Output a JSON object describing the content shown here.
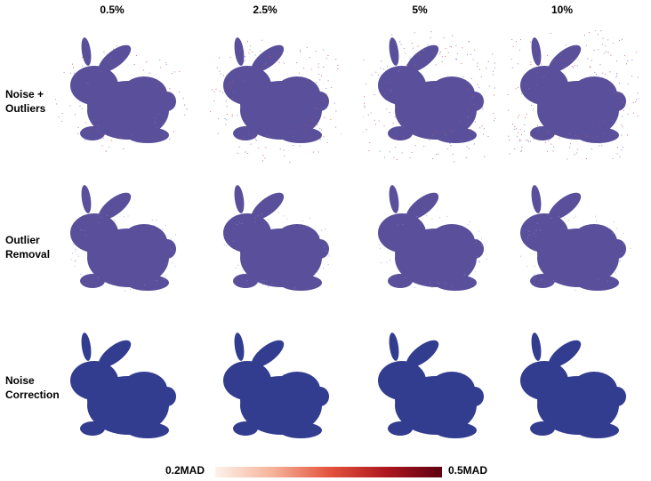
{
  "columns": [
    {
      "label": "0.5%",
      "spread": 0.2
    },
    {
      "label": "2.5%",
      "spread": 0.45
    },
    {
      "label": "5%",
      "spread": 0.7
    },
    {
      "label": "10%",
      "spread": 1.0
    }
  ],
  "rows": [
    {
      "line1": "Noise +",
      "line2": "Outliers",
      "mode": "noisy"
    },
    {
      "line1": "Outlier",
      "line2": "Removal",
      "mode": "cleaned"
    },
    {
      "line1": "Noise",
      "line2": "Correction",
      "mode": "smooth"
    }
  ],
  "colorbar": {
    "min_label": "0.2MAD",
    "max_label": "0.5MAD",
    "colors": [
      "#fdf1ea",
      "#f5b49b",
      "#e4553f",
      "#b0171f",
      "#5e0010"
    ]
  },
  "palette": {
    "body": "#333d8f",
    "body_light": "#7f87c4",
    "warm": "#d8584a"
  }
}
